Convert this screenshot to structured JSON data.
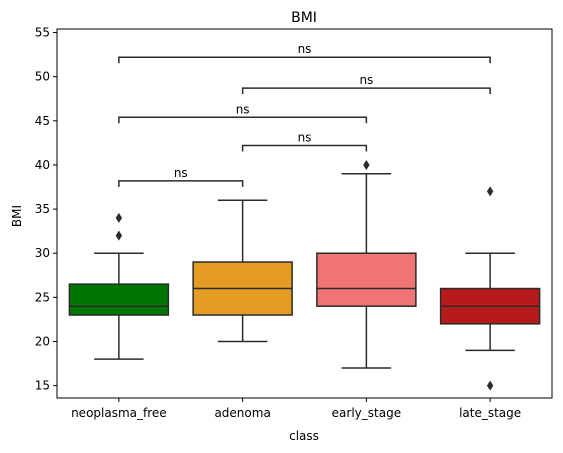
{
  "chart_data": {
    "type": "box",
    "title": "BMI",
    "xlabel": "class",
    "ylabel": "BMI",
    "ylim": [
      13.6,
      55.4
    ],
    "yticks": [
      15,
      20,
      25,
      30,
      35,
      40,
      45,
      50,
      55
    ],
    "categories": [
      "neoplasma_free",
      "adenoma",
      "early_stage",
      "late_stage"
    ],
    "boxes": [
      {
        "category": "neoplasma_free",
        "color": "#007500",
        "whisker_low": 18,
        "q1": 23,
        "median": 24,
        "q3": 26.5,
        "whisker_high": 30,
        "outliers": [
          32,
          34
        ]
      },
      {
        "category": "adenoma",
        "color": "#e59c22",
        "whisker_low": 20,
        "q1": 23,
        "median": 26,
        "q3": 29,
        "whisker_high": 36,
        "outliers": []
      },
      {
        "category": "early_stage",
        "color": "#f07474",
        "whisker_low": 17,
        "q1": 24,
        "median": 26,
        "q3": 30,
        "whisker_high": 39,
        "outliers": [
          40
        ]
      },
      {
        "category": "late_stage",
        "color": "#b71a1a",
        "whisker_low": 19,
        "q1": 22,
        "median": 24,
        "q3": 26,
        "whisker_high": 30,
        "outliers": [
          15,
          37
        ]
      }
    ],
    "significance": [
      {
        "from": "neoplasma_free",
        "to": "adenoma",
        "y": 38.2,
        "label": "ns"
      },
      {
        "from": "adenoma",
        "to": "early_stage",
        "y": 42.2,
        "label": "ns"
      },
      {
        "from": "neoplasma_free",
        "to": "early_stage",
        "y": 45.4,
        "label": "ns"
      },
      {
        "from": "adenoma",
        "to": "late_stage",
        "y": 48.7,
        "label": "ns"
      },
      {
        "from": "neoplasma_free",
        "to": "late_stage",
        "y": 52.2,
        "label": "ns"
      }
    ]
  }
}
